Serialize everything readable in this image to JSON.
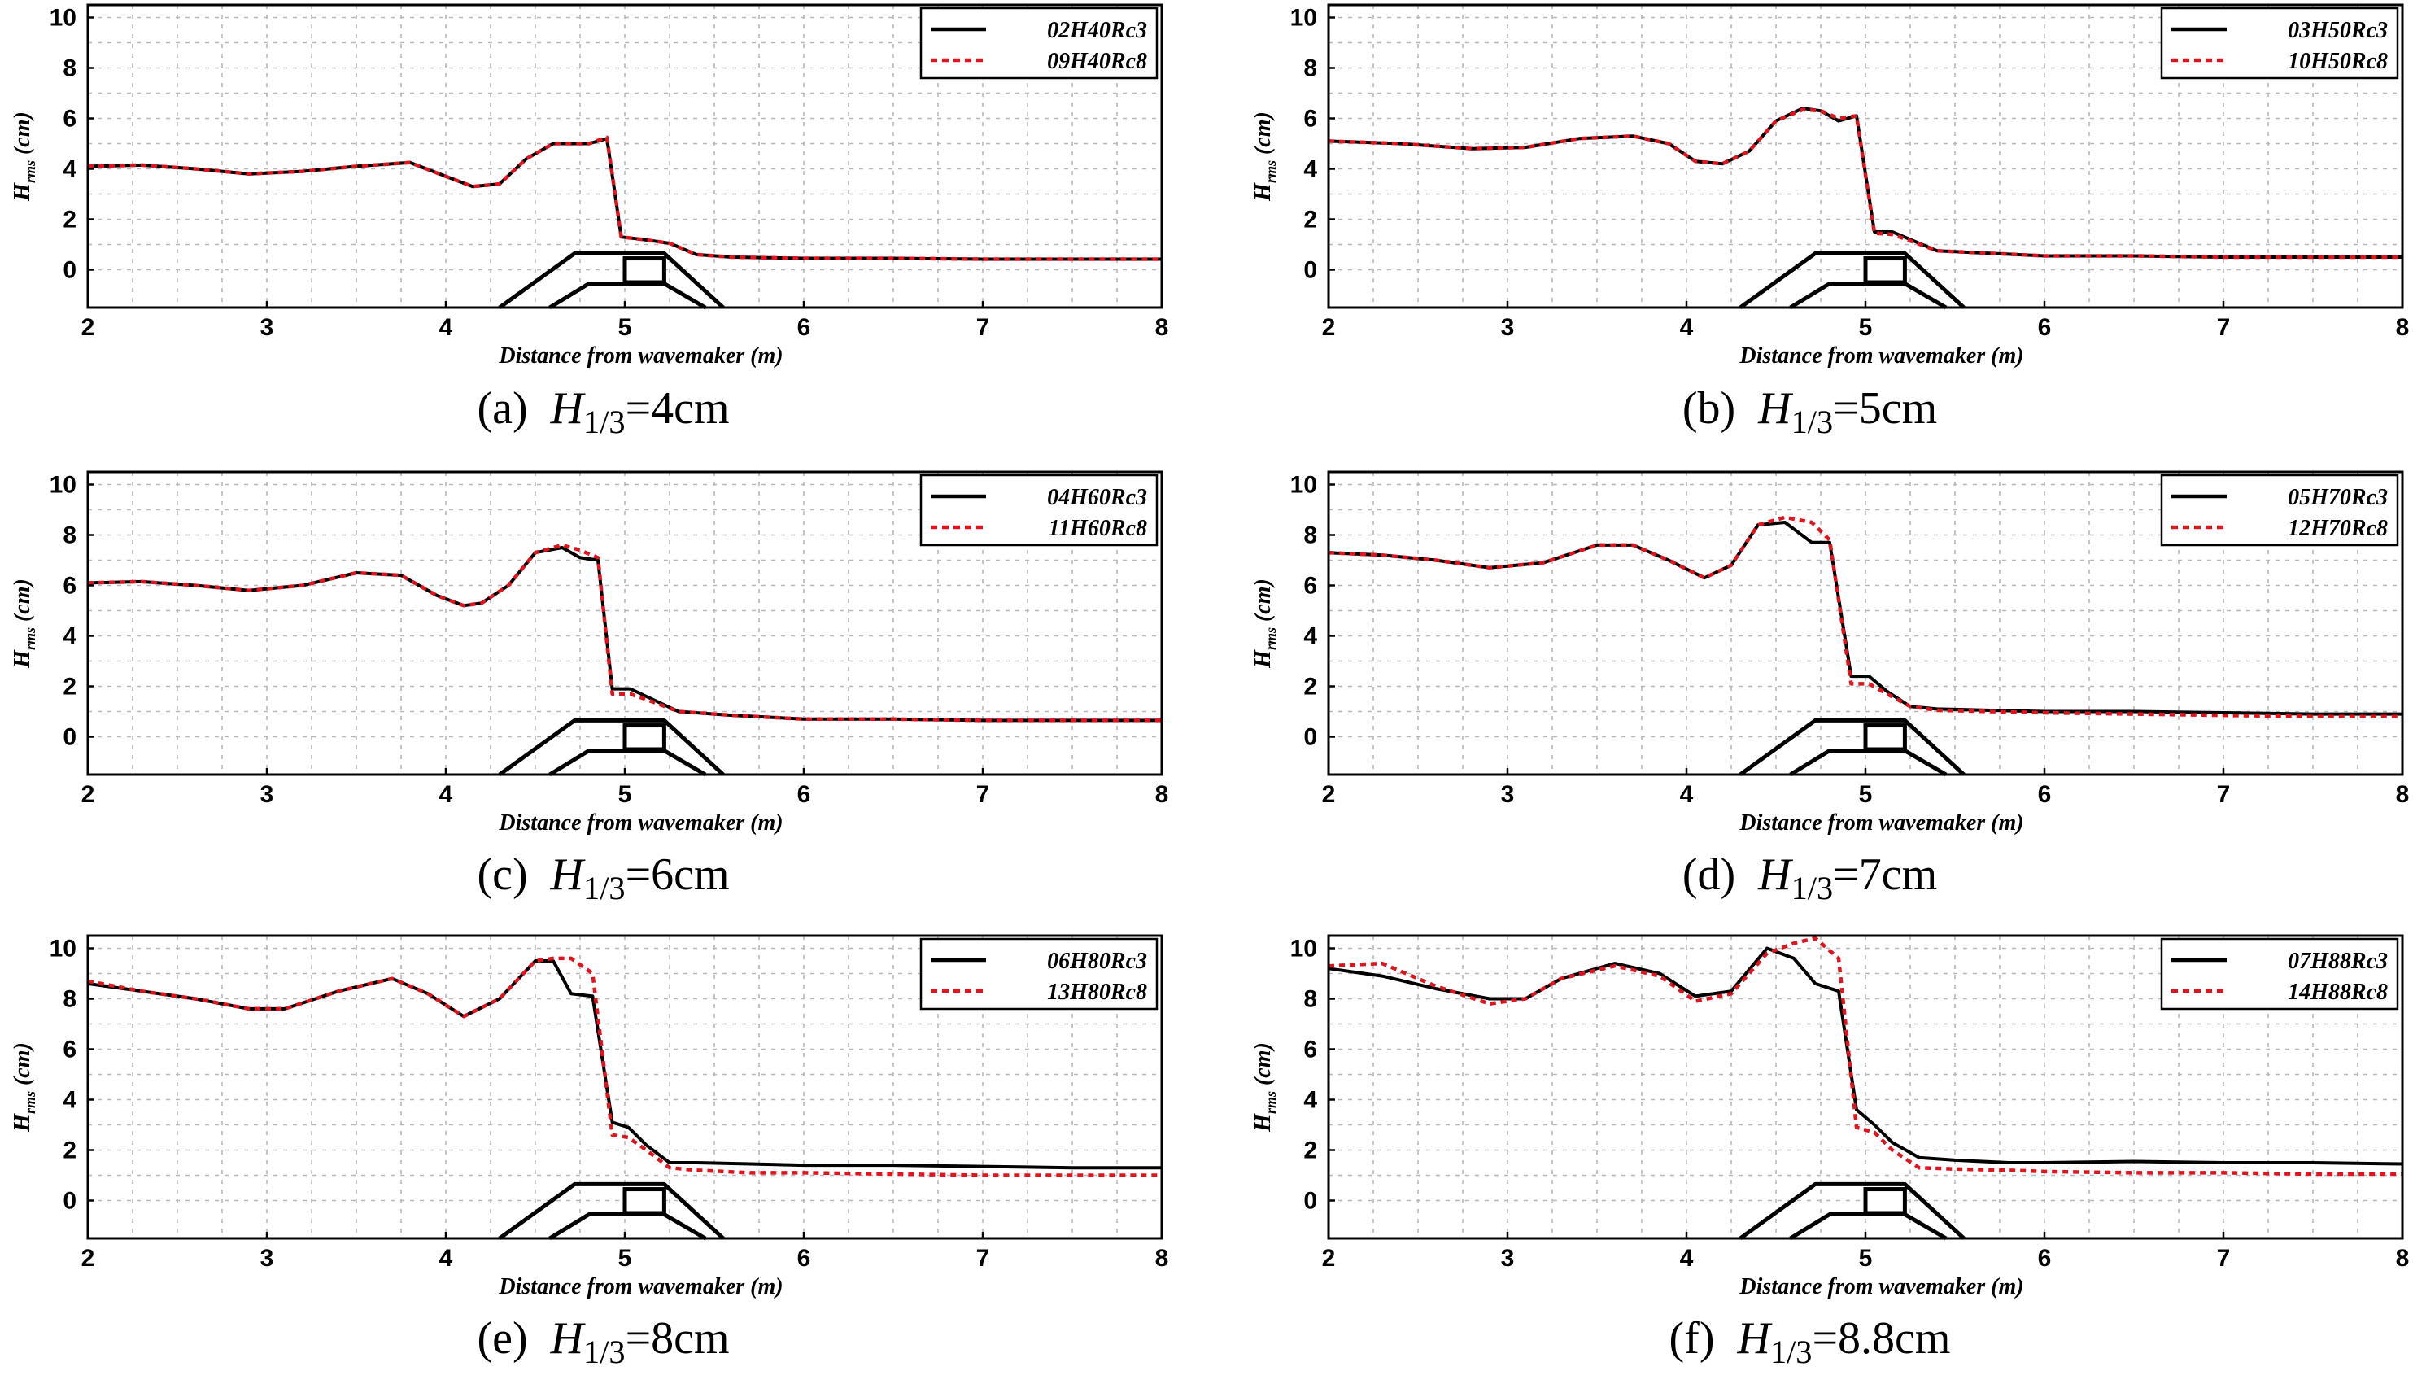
{
  "figure": {
    "captions": [
      {
        "letter": "(a)",
        "symbol": "H",
        "sub": "1/3",
        "rest": "=4cm"
      },
      {
        "letter": "(b)",
        "symbol": "H",
        "sub": "1/3",
        "rest": "=5cm"
      },
      {
        "letter": "(c)",
        "symbol": "H",
        "sub": "1/3",
        "rest": "=6cm"
      },
      {
        "letter": "(d)",
        "symbol": "H",
        "sub": "1/3",
        "rest": "=7cm"
      },
      {
        "letter": "(e)",
        "symbol": "H",
        "sub": "1/3",
        "rest": "=8cm"
      },
      {
        "letter": "(f)",
        "symbol": "H",
        "sub": "1/3",
        "rest": "=8.8cm"
      }
    ]
  },
  "chart_data": [
    {
      "type": "line",
      "xlabel": "Distance from wavemaker (m)",
      "ylabel": "H_rms (cm)",
      "xlim": [
        2,
        8
      ],
      "ylim": [
        -1.5,
        10.5
      ],
      "xticks": [
        2,
        3,
        4,
        5,
        6,
        7,
        8
      ],
      "yticks": [
        0,
        2,
        4,
        6,
        8,
        10
      ],
      "grid": true,
      "legend": "top-right",
      "structure_depicted": true,
      "series": [
        {
          "name": "02H40Rc3",
          "color": "#000000",
          "dash": "solid",
          "x": [
            2,
            2.3,
            2.6,
            2.9,
            3.2,
            3.5,
            3.8,
            4.0,
            4.15,
            4.3,
            4.45,
            4.6,
            4.75,
            4.8,
            4.9,
            4.98,
            5.1,
            5.25,
            5.4,
            5.6,
            6,
            6.5,
            7,
            7.5,
            8
          ],
          "y": [
            4.1,
            4.15,
            4.0,
            3.8,
            3.9,
            4.1,
            4.25,
            3.7,
            3.3,
            3.4,
            4.4,
            5.0,
            5.0,
            5.0,
            5.2,
            1.3,
            1.2,
            1.05,
            0.6,
            0.5,
            0.45,
            0.45,
            0.42,
            0.42,
            0.42
          ]
        },
        {
          "name": "09H40Rc8",
          "color": "#e0141e",
          "dash": "dotted",
          "x": [
            2,
            2.3,
            2.6,
            2.9,
            3.2,
            3.5,
            3.8,
            4.0,
            4.15,
            4.3,
            4.45,
            4.6,
            4.75,
            4.8,
            4.9,
            4.98,
            5.1,
            5.25,
            5.4,
            5.6,
            6,
            6.5,
            7,
            7.5,
            8
          ],
          "y": [
            4.1,
            4.15,
            4.0,
            3.8,
            3.9,
            4.1,
            4.25,
            3.7,
            3.3,
            3.4,
            4.4,
            5.0,
            5.0,
            5.0,
            5.25,
            1.3,
            1.2,
            1.05,
            0.6,
            0.5,
            0.45,
            0.45,
            0.42,
            0.42,
            0.42
          ]
        }
      ]
    },
    {
      "type": "line",
      "xlabel": "Distance from wavemaker (m)",
      "ylabel": "H_rms (cm)",
      "xlim": [
        2,
        8
      ],
      "ylim": [
        -1.5,
        10.5
      ],
      "xticks": [
        2,
        3,
        4,
        5,
        6,
        7,
        8
      ],
      "yticks": [
        0,
        2,
        4,
        6,
        8,
        10
      ],
      "grid": true,
      "legend": "top-right",
      "structure_depicted": true,
      "series": [
        {
          "name": "03H50Rc3",
          "color": "#000000",
          "dash": "solid",
          "x": [
            2,
            2.4,
            2.8,
            3.1,
            3.4,
            3.7,
            3.9,
            4.05,
            4.2,
            4.35,
            4.5,
            4.65,
            4.75,
            4.85,
            4.95,
            5.05,
            5.15,
            5.25,
            5.4,
            5.7,
            6,
            6.5,
            7,
            7.5,
            8
          ],
          "y": [
            5.1,
            5.0,
            4.8,
            4.85,
            5.2,
            5.3,
            5.0,
            4.3,
            4.2,
            4.7,
            5.9,
            6.4,
            6.3,
            5.9,
            6.1,
            1.5,
            1.5,
            1.2,
            0.75,
            0.65,
            0.55,
            0.55,
            0.5,
            0.5,
            0.5
          ]
        },
        {
          "name": "10H50Rc8",
          "color": "#e0141e",
          "dash": "dotted",
          "x": [
            2,
            2.4,
            2.8,
            3.1,
            3.4,
            3.7,
            3.9,
            4.05,
            4.2,
            4.35,
            4.5,
            4.65,
            4.75,
            4.85,
            4.95,
            5.05,
            5.15,
            5.25,
            5.4,
            5.7,
            6,
            6.5,
            7,
            7.5,
            8
          ],
          "y": [
            5.1,
            5.0,
            4.8,
            4.85,
            5.2,
            5.3,
            5.0,
            4.3,
            4.2,
            4.7,
            5.9,
            6.35,
            6.3,
            6.0,
            6.1,
            1.45,
            1.4,
            1.15,
            0.75,
            0.65,
            0.55,
            0.55,
            0.5,
            0.5,
            0.5
          ]
        }
      ]
    },
    {
      "type": "line",
      "xlabel": "Distance from wavemaker (m)",
      "ylabel": "H_rms (cm)",
      "xlim": [
        2,
        8
      ],
      "ylim": [
        -1.5,
        10.5
      ],
      "xticks": [
        2,
        3,
        4,
        5,
        6,
        7,
        8
      ],
      "yticks": [
        0,
        2,
        4,
        6,
        8,
        10
      ],
      "grid": true,
      "legend": "top-right",
      "structure_depicted": true,
      "series": [
        {
          "name": "04H60Rc3",
          "color": "#000000",
          "dash": "solid",
          "x": [
            2,
            2.3,
            2.6,
            2.9,
            3.2,
            3.5,
            3.75,
            3.95,
            4.1,
            4.2,
            4.35,
            4.5,
            4.65,
            4.75,
            4.85,
            4.93,
            5.03,
            5.15,
            5.3,
            5.6,
            6,
            6.5,
            7,
            7.5,
            8
          ],
          "y": [
            6.1,
            6.15,
            6.0,
            5.8,
            6.0,
            6.5,
            6.4,
            5.6,
            5.2,
            5.3,
            6.0,
            7.3,
            7.5,
            7.1,
            7.0,
            1.9,
            1.9,
            1.5,
            1.0,
            0.85,
            0.7,
            0.7,
            0.65,
            0.65,
            0.65
          ]
        },
        {
          "name": "11H60Rc8",
          "color": "#e0141e",
          "dash": "dotted",
          "x": [
            2,
            2.3,
            2.6,
            2.9,
            3.2,
            3.5,
            3.75,
            3.95,
            4.1,
            4.2,
            4.35,
            4.5,
            4.65,
            4.75,
            4.85,
            4.93,
            5.03,
            5.15,
            5.3,
            5.6,
            6,
            6.5,
            7,
            7.5,
            8
          ],
          "y": [
            6.1,
            6.15,
            6.0,
            5.8,
            6.0,
            6.5,
            6.4,
            5.6,
            5.2,
            5.3,
            6.0,
            7.3,
            7.6,
            7.4,
            7.1,
            1.7,
            1.7,
            1.4,
            1.0,
            0.85,
            0.7,
            0.7,
            0.65,
            0.65,
            0.65
          ]
        }
      ]
    },
    {
      "type": "line",
      "xlabel": "Distance from wavemaker (m)",
      "ylabel": "H_rms (cm)",
      "xlim": [
        2,
        8
      ],
      "ylim": [
        -1.5,
        10.5
      ],
      "xticks": [
        2,
        3,
        4,
        5,
        6,
        7,
        8
      ],
      "yticks": [
        0,
        2,
        4,
        6,
        8,
        10
      ],
      "grid": true,
      "legend": "top-right",
      "structure_depicted": true,
      "series": [
        {
          "name": "05H70Rc3",
          "color": "#000000",
          "dash": "solid",
          "x": [
            2,
            2.3,
            2.6,
            2.9,
            3.2,
            3.5,
            3.7,
            3.9,
            4.1,
            4.25,
            4.4,
            4.55,
            4.7,
            4.8,
            4.92,
            5.02,
            5.12,
            5.25,
            5.4,
            5.7,
            6,
            6.5,
            7,
            7.5,
            8
          ],
          "y": [
            7.3,
            7.2,
            7.0,
            6.7,
            6.9,
            7.6,
            7.6,
            7.0,
            6.3,
            6.8,
            8.4,
            8.5,
            7.7,
            7.7,
            2.4,
            2.4,
            1.8,
            1.2,
            1.1,
            1.05,
            1.0,
            1.0,
            0.95,
            0.9,
            0.9
          ]
        },
        {
          "name": "12H70Rc8",
          "color": "#e0141e",
          "dash": "dotted",
          "x": [
            2,
            2.3,
            2.6,
            2.9,
            3.2,
            3.5,
            3.7,
            3.9,
            4.1,
            4.25,
            4.4,
            4.55,
            4.7,
            4.8,
            4.92,
            5.02,
            5.12,
            5.25,
            5.4,
            5.7,
            6,
            6.5,
            7,
            7.5,
            8
          ],
          "y": [
            7.3,
            7.2,
            7.0,
            6.7,
            6.9,
            7.6,
            7.6,
            7.0,
            6.3,
            6.8,
            8.4,
            8.7,
            8.5,
            7.8,
            2.1,
            2.1,
            1.7,
            1.2,
            1.05,
            1.0,
            0.95,
            0.9,
            0.85,
            0.8,
            0.8
          ]
        }
      ]
    },
    {
      "type": "line",
      "xlabel": "Distance from wavemaker (m)",
      "ylabel": "H_rms (cm)",
      "xlim": [
        2,
        8
      ],
      "ylim": [
        -1.5,
        10.5
      ],
      "xticks": [
        2,
        3,
        4,
        5,
        6,
        7,
        8
      ],
      "yticks": [
        0,
        2,
        4,
        6,
        8,
        10
      ],
      "grid": true,
      "legend": "top-right",
      "structure_depicted": true,
      "series": [
        {
          "name": "06H80Rc3",
          "color": "#000000",
          "dash": "solid",
          "x": [
            2,
            2.3,
            2.6,
            2.9,
            3.1,
            3.4,
            3.7,
            3.9,
            4.1,
            4.3,
            4.5,
            4.6,
            4.7,
            4.82,
            4.93,
            5.02,
            5.12,
            5.25,
            5.4,
            5.7,
            6,
            6.5,
            7,
            7.5,
            8
          ],
          "y": [
            8.6,
            8.3,
            8.0,
            7.6,
            7.6,
            8.3,
            8.8,
            8.2,
            7.3,
            8.0,
            9.5,
            9.5,
            8.2,
            8.1,
            3.1,
            2.9,
            2.2,
            1.5,
            1.5,
            1.45,
            1.4,
            1.4,
            1.35,
            1.3,
            1.3
          ]
        },
        {
          "name": "13H80Rc8",
          "color": "#e0141e",
          "dash": "dotted",
          "x": [
            2,
            2.3,
            2.6,
            2.9,
            3.1,
            3.4,
            3.7,
            3.9,
            4.1,
            4.3,
            4.5,
            4.6,
            4.7,
            4.82,
            4.93,
            5.02,
            5.12,
            5.25,
            5.4,
            5.7,
            6,
            6.5,
            7,
            7.5,
            8
          ],
          "y": [
            8.7,
            8.3,
            8.0,
            7.6,
            7.6,
            8.3,
            8.8,
            8.2,
            7.3,
            8.0,
            9.5,
            9.6,
            9.6,
            9.0,
            2.6,
            2.5,
            2.0,
            1.3,
            1.2,
            1.1,
            1.1,
            1.05,
            1.0,
            1.0,
            1.0
          ]
        }
      ]
    },
    {
      "type": "line",
      "xlabel": "Distance from wavemaker (m)",
      "ylabel": "H_rms (cm)",
      "xlim": [
        2,
        8
      ],
      "ylim": [
        -1.5,
        10.5
      ],
      "xticks": [
        2,
        3,
        4,
        5,
        6,
        7,
        8
      ],
      "yticks": [
        0,
        2,
        4,
        6,
        8,
        10
      ],
      "grid": true,
      "legend": "top-right",
      "structure_depicted": true,
      "series": [
        {
          "name": "07H88Rc3",
          "color": "#000000",
          "dash": "solid",
          "x": [
            2,
            2.3,
            2.6,
            2.9,
            3.1,
            3.3,
            3.6,
            3.85,
            4.05,
            4.25,
            4.45,
            4.6,
            4.72,
            4.85,
            4.95,
            5.05,
            5.15,
            5.3,
            5.5,
            5.8,
            6,
            6.5,
            7,
            7.5,
            8
          ],
          "y": [
            9.2,
            8.9,
            8.4,
            8.0,
            8.0,
            8.8,
            9.4,
            9.0,
            8.1,
            8.3,
            10.0,
            9.6,
            8.6,
            8.3,
            3.6,
            3.0,
            2.3,
            1.7,
            1.6,
            1.5,
            1.5,
            1.55,
            1.5,
            1.5,
            1.45
          ]
        },
        {
          "name": "14H88Rc8",
          "color": "#e0141e",
          "dash": "dotted",
          "x": [
            2,
            2.3,
            2.6,
            2.9,
            3.1,
            3.3,
            3.6,
            3.85,
            4.05,
            4.25,
            4.45,
            4.6,
            4.72,
            4.85,
            4.95,
            5.05,
            5.15,
            5.3,
            5.5,
            5.8,
            6,
            6.5,
            7,
            7.5,
            8
          ],
          "y": [
            9.3,
            9.4,
            8.5,
            7.8,
            8.0,
            8.8,
            9.3,
            8.9,
            7.9,
            8.2,
            9.8,
            10.2,
            10.4,
            9.6,
            2.9,
            2.7,
            2.0,
            1.3,
            1.25,
            1.2,
            1.15,
            1.1,
            1.1,
            1.05,
            1.05
          ]
        }
      ]
    }
  ]
}
